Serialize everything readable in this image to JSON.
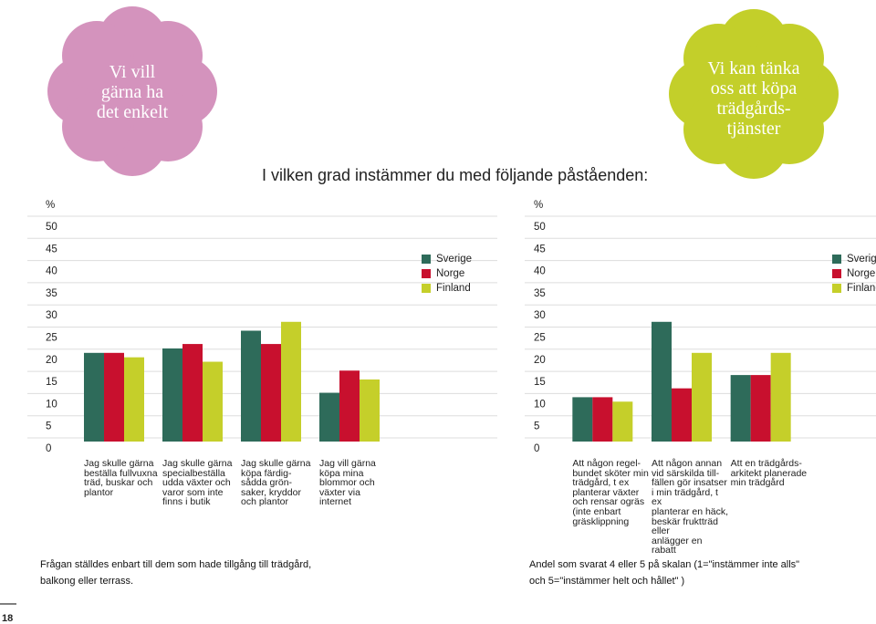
{
  "header": {
    "flower_left": "Vi vill\ngärna ha\ndet enkelt",
    "flower_right": "Vi kan tänka\noss att köpa\nträdgårds-\ntjänster",
    "question": "I vilken grad instämmer du med följande påståenden:"
  },
  "chart_data": [
    {
      "type": "bar",
      "y_label": "%",
      "categories": [
        "Jag skulle gärna\nbeställa fullvuxna\nträd, buskar och\nplantor",
        "Jag skulle gärna\nspecialbeställa\nudda växter och\nvaror som inte\nfinns i butik",
        "Jag skulle gärna\nköpa färdig-\nsådda grön-\nsaker, kryddor\noch plantor",
        "Jag vill gärna\nköpa mina\nblommor och\nväxter via\ninternet"
      ],
      "series": [
        {
          "name": "Sverige",
          "color": "#2e6b5a",
          "values": [
            20,
            21,
            25,
            11
          ]
        },
        {
          "name": "Norge",
          "color": "#c8102e",
          "values": [
            20,
            22,
            22,
            16
          ]
        },
        {
          "name": "Finland",
          "color": "#c5cf2a",
          "values": [
            19,
            18,
            27,
            14
          ]
        }
      ],
      "ylim": [
        0,
        50
      ],
      "yticks": [
        0,
        5,
        10,
        15,
        20,
        25,
        30,
        35,
        40,
        45,
        50
      ],
      "grid": true
    },
    {
      "type": "bar",
      "y_label": "%",
      "categories": [
        "Att någon regel-\nbundet sköter min\nträdgård, t ex\nplanterar växter\noch rensar ogräs\n(inte enbart\ngräsklippning",
        "Att någon annan\nvid särskilda till-\nfällen gör insatser\ni min trädgård, t ex\nplanterar en häck,\nbeskär fruktträd eller\nanlägger en rabatt",
        "Att en trädgårds-\narkitekt planerade\nmin trädgård"
      ],
      "series": [
        {
          "name": "Sverige",
          "color": "#2e6b5a",
          "values": [
            10,
            27,
            15
          ]
        },
        {
          "name": "Norge",
          "color": "#c8102e",
          "values": [
            10,
            12,
            15
          ]
        },
        {
          "name": "Finland",
          "color": "#c5cf2a",
          "values": [
            9,
            20,
            20
          ]
        }
      ],
      "ylim": [
        0,
        50
      ],
      "yticks": [
        0,
        5,
        10,
        15,
        20,
        25,
        30,
        35,
        40,
        45,
        50
      ],
      "grid": true
    }
  ],
  "footnotes": {
    "left": "Frågan ställdes enbart till dem som hade tillgång till trädgård,\nbalkong eller terrass.",
    "right": "Andel som svarat 4 eller 5 på skalan (1=\"instämmer inte alls\"\noch 5=\"instämmer helt och hållet\" )"
  },
  "page_number": "18"
}
